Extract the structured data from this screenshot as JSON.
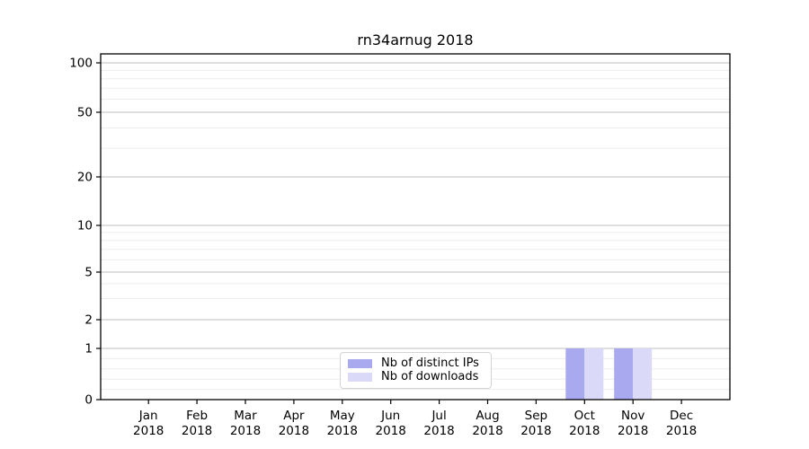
{
  "chart_data": {
    "type": "bar",
    "title": "rn34arnug 2018",
    "categories": [
      "Jan",
      "Feb",
      "Mar",
      "Apr",
      "May",
      "Jun",
      "Jul",
      "Aug",
      "Sep",
      "Oct",
      "Nov",
      "Dec"
    ],
    "x_year_label": "2018",
    "series": [
      {
        "name": "Nb of distinct IPs",
        "color": "#a9a9ef",
        "values": [
          0,
          0,
          0,
          0,
          0,
          0,
          0,
          0,
          0,
          1,
          1,
          0
        ]
      },
      {
        "name": "Nb of downloads",
        "color": "#dadaf8",
        "values": [
          0,
          0,
          0,
          0,
          0,
          0,
          0,
          0,
          0,
          1,
          1,
          0
        ]
      }
    ],
    "y_ticks": [
      0,
      1,
      2,
      5,
      10,
      20,
      50,
      100
    ],
    "y_minor_ticks": [
      0.2,
      0.4,
      0.6,
      0.8,
      3,
      4,
      6,
      7,
      8,
      9,
      30,
      40,
      60,
      70,
      80,
      90
    ],
    "yscale": "symlog",
    "ylim": [
      0,
      115
    ],
    "xlabel": "",
    "ylabel": "",
    "grid": "both",
    "legend_position": "lower center",
    "colors": {
      "major_grid": "#bdbdbd",
      "minor_grid": "#ededed",
      "axis": "#000000"
    }
  }
}
